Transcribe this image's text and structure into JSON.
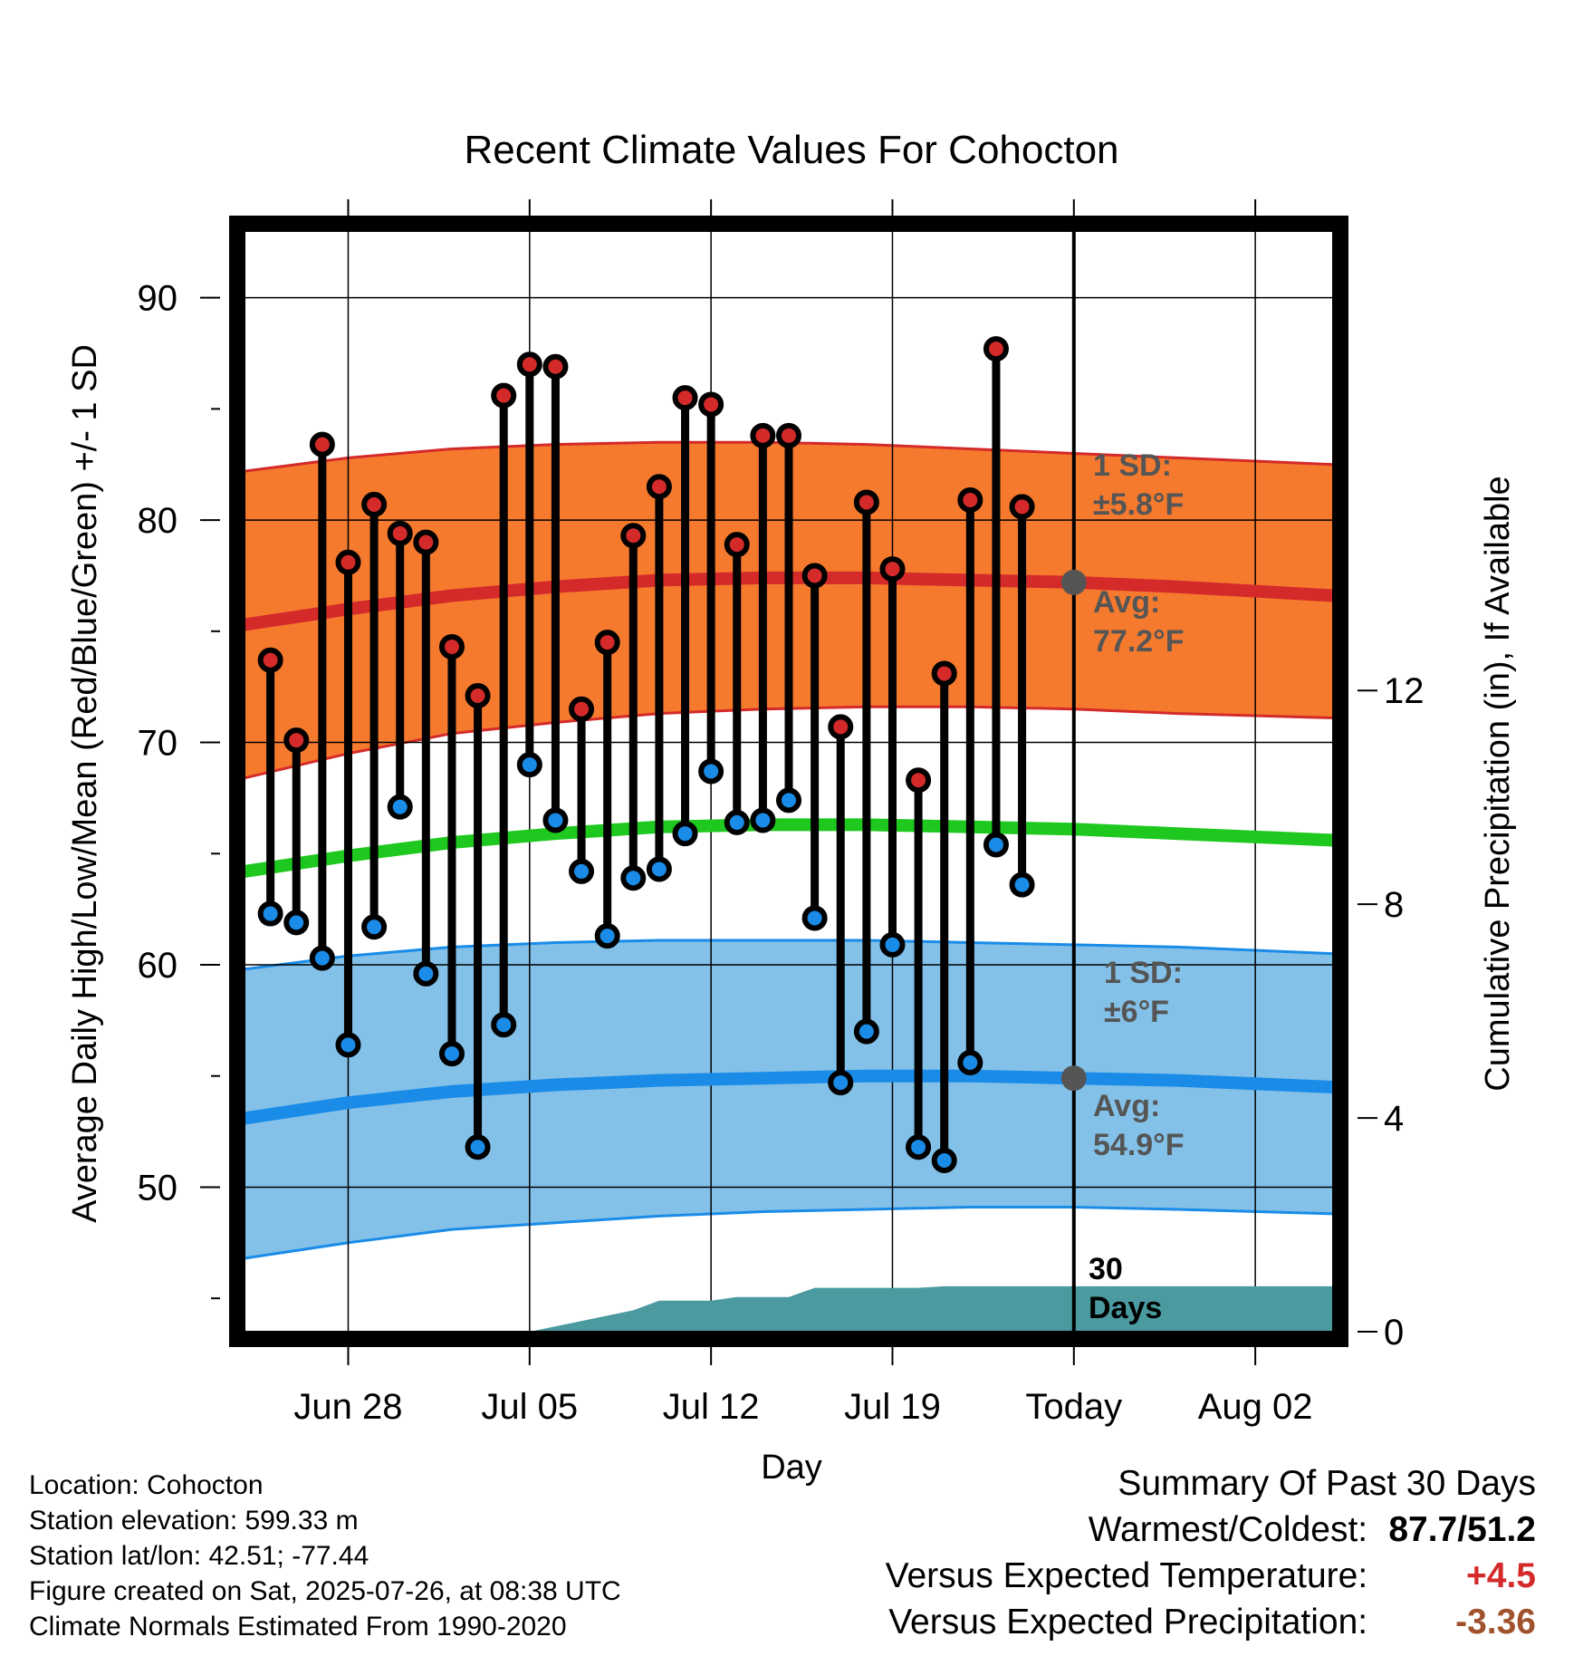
{
  "chart_data": {
    "type": "line",
    "title": "Recent Climate Values For Cohocton",
    "xlabel": "Day",
    "ylabel": "Average Daily High/Low/Mean (Red/Blue/Green) +/- 1 SD",
    "y2label": "Cumulative Precipitation (in), If Available",
    "ylim": [
      43.5,
      93
    ],
    "y2lim": [
      0,
      20.6
    ],
    "xlim": [
      "2025-06-24",
      "2025-08-05"
    ],
    "x_ticks": [
      {
        "date": "2025-06-28",
        "label": "Jun 28"
      },
      {
        "date": "2025-07-05",
        "label": "Jul 05"
      },
      {
        "date": "2025-07-12",
        "label": "Jul 12"
      },
      {
        "date": "2025-07-19",
        "label": "Jul 19"
      },
      {
        "date": "2025-07-26",
        "label": "Today"
      },
      {
        "date": "2025-08-02",
        "label": "Aug 02"
      }
    ],
    "y_ticks": [
      50,
      60,
      70,
      80,
      90
    ],
    "y2_ticks": [
      0,
      4,
      8,
      12
    ],
    "grid": true,
    "today": "2025-07-26",
    "observed": [
      {
        "date": "2025-06-25",
        "high": 73.7,
        "low": 62.3
      },
      {
        "date": "2025-06-26",
        "high": 70.1,
        "low": 61.9
      },
      {
        "date": "2025-06-27",
        "high": 83.4,
        "low": 60.3
      },
      {
        "date": "2025-06-28",
        "high": 78.1,
        "low": 56.4
      },
      {
        "date": "2025-06-29",
        "high": 80.7,
        "low": 61.7
      },
      {
        "date": "2025-06-30",
        "high": 79.4,
        "low": 67.1
      },
      {
        "date": "2025-07-01",
        "high": 79.0,
        "low": 59.6
      },
      {
        "date": "2025-07-02",
        "high": 74.3,
        "low": 56.0
      },
      {
        "date": "2025-07-03",
        "high": 72.1,
        "low": 51.8
      },
      {
        "date": "2025-07-04",
        "high": 85.6,
        "low": 57.3
      },
      {
        "date": "2025-07-05",
        "high": 87.0,
        "low": 69.0
      },
      {
        "date": "2025-07-06",
        "high": 86.9,
        "low": 66.5
      },
      {
        "date": "2025-07-07",
        "high": 71.5,
        "low": 64.2
      },
      {
        "date": "2025-07-08",
        "high": 74.5,
        "low": 61.3
      },
      {
        "date": "2025-07-09",
        "high": 79.3,
        "low": 63.9
      },
      {
        "date": "2025-07-10",
        "high": 81.5,
        "low": 64.3
      },
      {
        "date": "2025-07-11",
        "high": 85.5,
        "low": 65.9
      },
      {
        "date": "2025-07-12",
        "high": 85.2,
        "low": 68.7
      },
      {
        "date": "2025-07-13",
        "high": 78.9,
        "low": 66.4
      },
      {
        "date": "2025-07-14",
        "high": 83.8,
        "low": 66.5
      },
      {
        "date": "2025-07-15",
        "high": 83.8,
        "low": 67.4
      },
      {
        "date": "2025-07-16",
        "high": 77.5,
        "low": 62.1
      },
      {
        "date": "2025-07-17",
        "high": 70.7,
        "low": 54.7
      },
      {
        "date": "2025-07-18",
        "high": 80.8,
        "low": 57.0
      },
      {
        "date": "2025-07-19",
        "high": 77.8,
        "low": 60.9
      },
      {
        "date": "2025-07-20",
        "high": 68.3,
        "low": 51.8
      },
      {
        "date": "2025-07-21",
        "high": 73.1,
        "low": 51.2
      },
      {
        "date": "2025-07-22",
        "high": 80.9,
        "low": 55.6
      },
      {
        "date": "2025-07-23",
        "high": 87.7,
        "low": 65.4
      },
      {
        "date": "2025-07-24",
        "high": 80.6,
        "low": 63.6
      }
    ],
    "normals_dates": [
      "2025-06-24",
      "2025-06-28",
      "2025-07-02",
      "2025-07-06",
      "2025-07-10",
      "2025-07-14",
      "2025-07-18",
      "2025-07-22",
      "2025-07-26",
      "2025-07-30",
      "2025-08-05"
    ],
    "normal_high": [
      75.3,
      76.0,
      76.6,
      77.0,
      77.3,
      77.4,
      77.4,
      77.3,
      77.2,
      77.0,
      76.6
    ],
    "normal_high_sd_upper": [
      82.2,
      82.8,
      83.2,
      83.4,
      83.5,
      83.5,
      83.4,
      83.2,
      83.0,
      82.8,
      82.5
    ],
    "normal_high_sd_lower": [
      68.4,
      69.5,
      70.4,
      70.9,
      71.3,
      71.5,
      71.6,
      71.6,
      71.5,
      71.3,
      71.1
    ],
    "normal_mean": [
      64.2,
      64.9,
      65.5,
      65.9,
      66.2,
      66.3,
      66.3,
      66.2,
      66.1,
      65.9,
      65.6
    ],
    "normal_low": [
      53.1,
      53.8,
      54.3,
      54.6,
      54.8,
      54.9,
      55.0,
      55.0,
      54.9,
      54.8,
      54.5
    ],
    "normal_low_sd_upper": [
      59.8,
      60.4,
      60.8,
      61.0,
      61.1,
      61.1,
      61.1,
      61.0,
      60.9,
      60.8,
      60.5
    ],
    "normal_low_sd_lower": [
      46.8,
      47.5,
      48.1,
      48.4,
      48.7,
      48.9,
      49.0,
      49.1,
      49.1,
      49.0,
      48.8
    ],
    "precip_cumulative": [
      {
        "date": "2025-06-24",
        "in": 0.0
      },
      {
        "date": "2025-07-05",
        "in": 0.0
      },
      {
        "date": "2025-07-07",
        "in": 0.2
      },
      {
        "date": "2025-07-09",
        "in": 0.4
      },
      {
        "date": "2025-07-10",
        "in": 0.58
      },
      {
        "date": "2025-07-12",
        "in": 0.58
      },
      {
        "date": "2025-07-13",
        "in": 0.65
      },
      {
        "date": "2025-07-15",
        "in": 0.65
      },
      {
        "date": "2025-07-16",
        "in": 0.82
      },
      {
        "date": "2025-07-20",
        "in": 0.82
      },
      {
        "date": "2025-07-21",
        "in": 0.85
      },
      {
        "date": "2025-08-05",
        "in": 0.85
      }
    ],
    "annotations": {
      "high_sd_label": "1 SD:",
      "high_sd_value": "±5.8°F",
      "high_avg_label": "Avg:",
      "high_avg_value": "77.2°F",
      "low_sd_label": "1 SD:",
      "low_sd_value": "±6°F",
      "low_avg_label": "Avg:",
      "low_avg_value": "54.9°F",
      "window_label_1": "30",
      "window_label_2": "Days"
    },
    "colors": {
      "high_band": "#f57a2e",
      "high_line": "#d42a2a",
      "low_band": "#83c1e8",
      "low_line": "#1a8ce8",
      "mean_line": "#1ec81e",
      "precip": "#4a9aa0",
      "high_dot": "#d42a2a",
      "low_dot": "#1a8ce8",
      "today_marker": "#555555"
    }
  },
  "footer": {
    "location": "Location: Cohocton",
    "elevation": "Station elevation: 599.33 m",
    "latlon": "Station lat/lon: 42.51; -77.44",
    "created": "Figure created on Sat, 2025-07-26, at 08:38 UTC",
    "normals": "Climate Normals Estimated From 1990-2020"
  },
  "summary": {
    "title": "Summary Of Past 30 Days",
    "warm_cold_label": "Warmest/Coldest:",
    "warm_cold_value": "87.7/51.2",
    "temp_label": "Versus Expected Temperature:",
    "temp_value": "+4.5",
    "temp_color": "#d42a2a",
    "precip_label": "Versus Expected Precipitation:",
    "precip_value": "-3.36",
    "precip_color": "#a0522d"
  }
}
